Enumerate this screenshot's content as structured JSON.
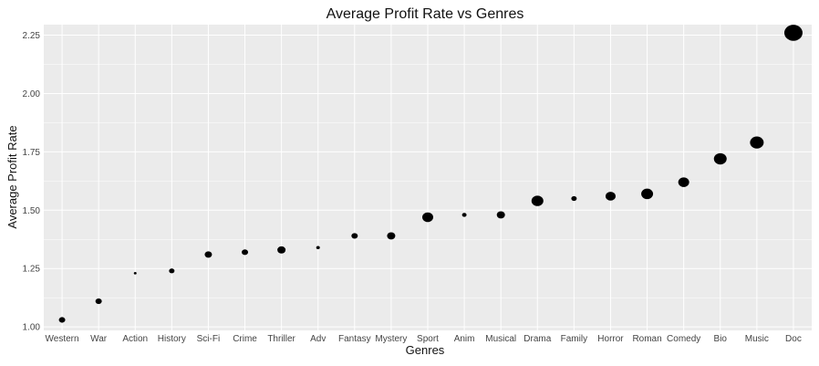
{
  "chart_data": {
    "type": "scatter",
    "title": "Average Profit Rate vs Genres",
    "xlabel": "Genres",
    "ylabel": "Average Profit Rate",
    "ylim": [
      0.985,
      2.295
    ],
    "yticks": [
      1.0,
      1.25,
      1.5,
      1.75,
      2.0,
      2.25
    ],
    "ytick_labels": [
      "1.00",
      "1.25",
      "1.50",
      "1.75",
      "2.00",
      "2.25"
    ],
    "grid": true,
    "legend": "none",
    "point_color": "#000000",
    "panel_color": "#ebebeb",
    "grid_color": "#ffffff",
    "categories": [
      "Western",
      "War",
      "Action",
      "History",
      "Sci-Fi",
      "Crime",
      "Thriller",
      "Adv",
      "Fantasy",
      "Mystery",
      "Sport",
      "Anim",
      "Musical",
      "Drama",
      "Family",
      "Horror",
      "Roman",
      "Comedy",
      "Bio",
      "Music",
      "Doc"
    ],
    "values": [
      1.03,
      1.11,
      1.23,
      1.24,
      1.31,
      1.32,
      1.33,
      1.34,
      1.39,
      1.39,
      1.47,
      1.48,
      1.48,
      1.54,
      1.55,
      1.56,
      1.57,
      1.62,
      1.72,
      1.79,
      2.26
    ],
    "point_size": [
      3.5,
      3.5,
      1.5,
      3,
      4,
      3.5,
      4.5,
      2,
      3.5,
      4.5,
      6,
      2.5,
      4.5,
      6.5,
      3,
      5.5,
      6.5,
      6,
      7,
      7.5,
      10
    ]
  }
}
